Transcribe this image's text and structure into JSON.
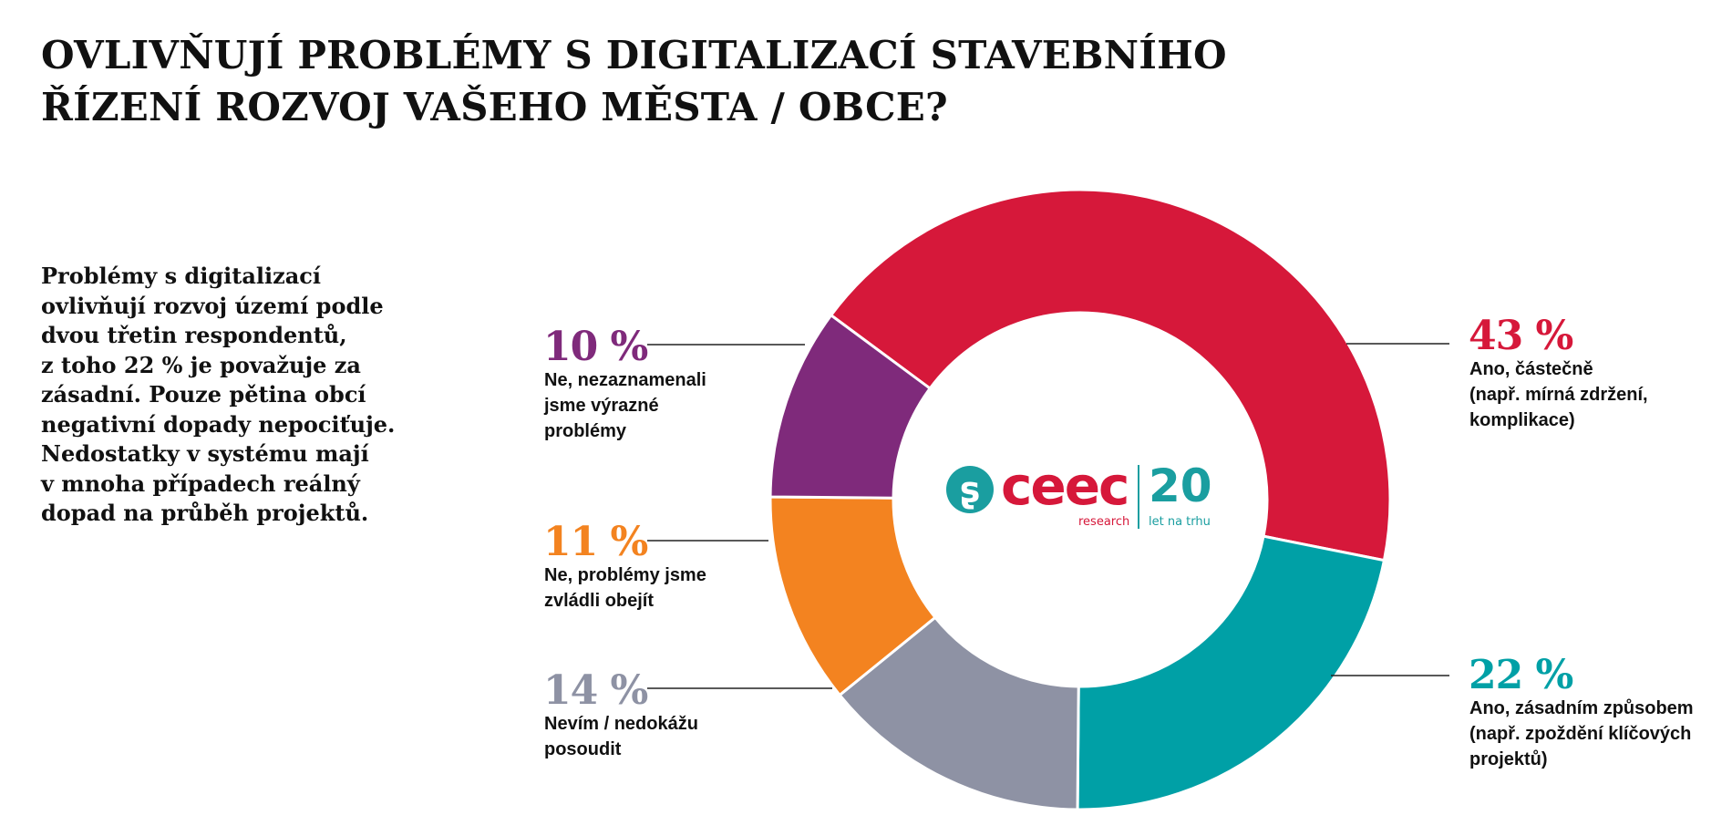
{
  "title": {
    "line1": "OVLIVŇUJÍ PROBLÉMY S DIGITALIZACÍ STAVEBNÍHO",
    "line2": "ŘÍZENÍ ROZVOJ VAŠEHO MĚSTA / OBCE?"
  },
  "summary": {
    "lines": [
      "Problémy s digitalizací",
      "ovlivňují rozvoj území podle",
      "dvou třetin respondentů,",
      "z toho 22 % je považuje za",
      "zásadní. Pouze pětina obcí",
      "negativní dopady nepociťuje.",
      "Nedostatky v systému mají",
      "v mnoha případech reálný",
      "dopad na průběh projektů."
    ]
  },
  "logo": {
    "mark": "ʂ",
    "word": "ceec",
    "sub_left": "research",
    "number": "20",
    "sub_right": "let na trhu"
  },
  "chart_data": {
    "type": "pie",
    "donut": true,
    "unit": "%",
    "slices": [
      {
        "value": 43,
        "label_pct": "43 %",
        "desc": [
          "Ano, částečně",
          "(např. mírná zdržení,",
          "komplikace)"
        ],
        "color": "#d6183a"
      },
      {
        "value": 22,
        "label_pct": "22 %",
        "desc": [
          "Ano, zásadním způsobem",
          "(např. zpoždění klíčových",
          "projektů)"
        ],
        "color": "#00a0a6"
      },
      {
        "value": 14,
        "label_pct": "14 %",
        "desc": [
          "Nevím / nedokážu",
          "posoudit"
        ],
        "color": "#8e92a4"
      },
      {
        "value": 11,
        "label_pct": "11 %",
        "desc": [
          "Ne, problémy jsme",
          "zvládli obejít"
        ],
        "color": "#f38320"
      },
      {
        "value": 10,
        "label_pct": "10 %",
        "desc": [
          "Ne, nezaznamenali",
          "jsme výrazné",
          "problémy"
        ],
        "color": "#7f2a7b"
      }
    ]
  }
}
